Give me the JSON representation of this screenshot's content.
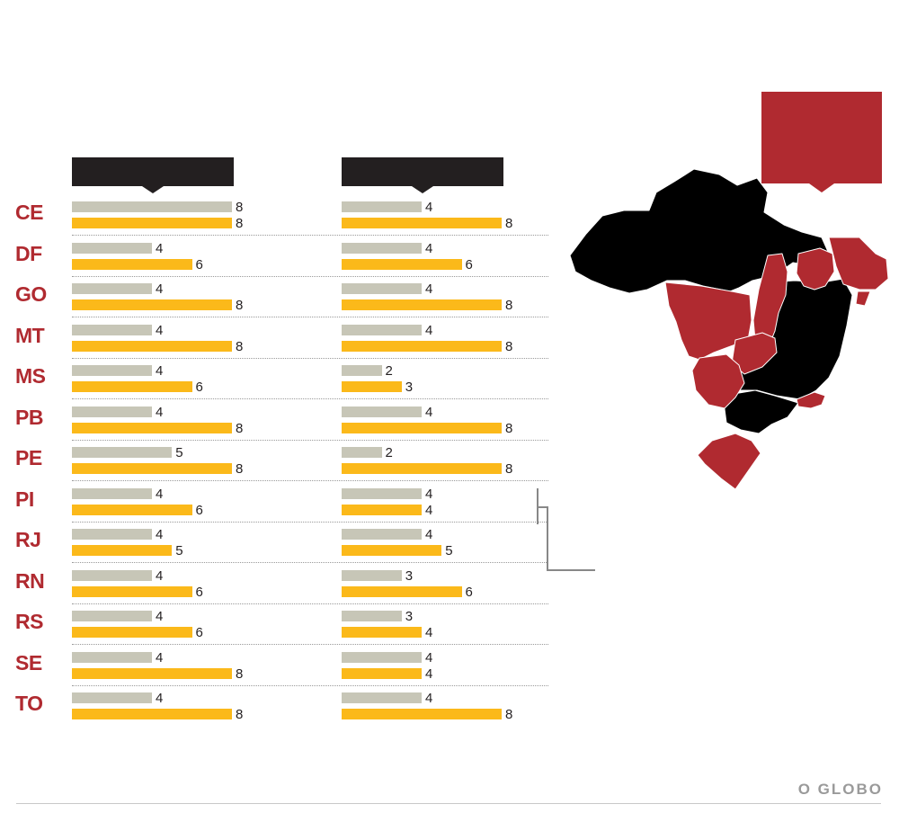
{
  "colors": {
    "gray_series": "#c7c6b7",
    "yellow_series": "#fbb91a",
    "state_red": "#b02a30",
    "header_dark": "#231f20",
    "map_gray": "#dcdcdc",
    "brand": "#9a9a9a"
  },
  "brand": "O GLOBO",
  "chart_data": {
    "type": "bar",
    "orientation": "horizontal",
    "categories": [
      "CE",
      "DF",
      "GO",
      "MT",
      "MS",
      "PB",
      "PE",
      "PI",
      "RJ",
      "RN",
      "RS",
      "SE",
      "TO"
    ],
    "xlim": [
      0,
      8
    ],
    "panels": [
      {
        "series": [
          {
            "color": "#c7c6b7",
            "values": [
              8,
              4,
              4,
              4,
              4,
              4,
              5,
              4,
              4,
              4,
              4,
              4,
              4
            ]
          },
          {
            "color": "#fbb91a",
            "values": [
              8,
              6,
              8,
              8,
              6,
              8,
              8,
              6,
              5,
              6,
              6,
              8,
              8
            ]
          }
        ]
      },
      {
        "series": [
          {
            "color": "#c7c6b7",
            "values": [
              4,
              4,
              4,
              4,
              2,
              4,
              2,
              4,
              4,
              3,
              3,
              4,
              4
            ]
          },
          {
            "color": "#fbb91a",
            "values": [
              8,
              6,
              8,
              8,
              3,
              8,
              8,
              4,
              5,
              6,
              4,
              4,
              8
            ]
          }
        ]
      }
    ],
    "highlighted_states_on_map": [
      "CE",
      "RN",
      "PB",
      "PE",
      "PI",
      "MT",
      "GO",
      "TO",
      "DF",
      "MS",
      "RJ",
      "RS",
      "SE"
    ]
  }
}
